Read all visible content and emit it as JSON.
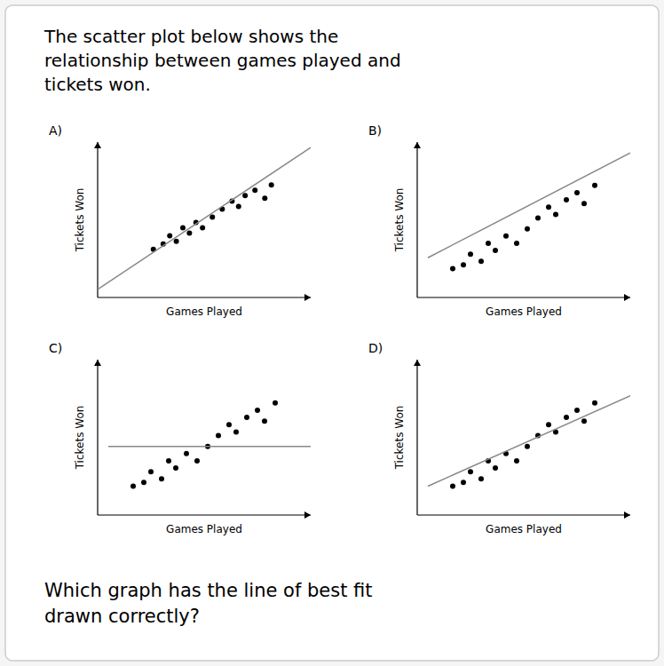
{
  "title": "The scatter plot below shows the\nrelationship between games played and\ntickets won.",
  "question": "Which graph has the line of best fit\ndrawn correctly?",
  "chart_data": [
    {
      "type": "scatter",
      "title": "A)",
      "x_label": "Games Played",
      "y_label": "Tickets Won",
      "xlim": [
        -0.5,
        6.0
      ],
      "ylim": [
        0.2,
        6.0
      ],
      "tick_labels": false,
      "series": [
        {
          "type": "scatter",
          "color": "#000000",
          "x": [
            1.2,
            1.5,
            1.7,
            1.9,
            2.1,
            2.3,
            2.5,
            2.7,
            3.0,
            3.3,
            3.6,
            3.8,
            4.0,
            4.3,
            4.6,
            4.8
          ],
          "values": [
            2.0,
            2.2,
            2.5,
            2.3,
            2.8,
            2.6,
            3.0,
            2.8,
            3.2,
            3.5,
            3.8,
            3.6,
            4.0,
            4.2,
            3.9,
            4.4
          ]
        },
        {
          "type": "line",
          "color": "#888888",
          "x": [
            -0.5,
            6.0
          ],
          "values": [
            0.5,
            5.8
          ]
        }
      ]
    },
    {
      "type": "scatter",
      "title": "B)",
      "x_label": "Games Played",
      "y_label": "Tickets Won",
      "xlim": [
        0,
        6.0
      ],
      "ylim": [
        1.2,
        5.5
      ],
      "tick_labels": false,
      "series": [
        {
          "type": "scatter",
          "color": "#000000",
          "x": [
            1.0,
            1.3,
            1.5,
            1.8,
            2.0,
            2.2,
            2.5,
            2.8,
            3.1,
            3.4,
            3.7,
            3.9,
            4.2,
            4.5,
            4.7,
            5.0
          ],
          "values": [
            2.0,
            2.1,
            2.4,
            2.2,
            2.7,
            2.5,
            2.9,
            2.7,
            3.1,
            3.4,
            3.7,
            3.5,
            3.9,
            4.1,
            3.8,
            4.3
          ]
        },
        {
          "type": "line",
          "color": "#888888",
          "x": [
            0.3,
            6.0
          ],
          "values": [
            2.3,
            5.2
          ]
        }
      ]
    },
    {
      "type": "scatter",
      "title": "C)",
      "x_label": "Games Played",
      "y_label": "Tickets Won",
      "xlim": [
        0,
        6.0
      ],
      "ylim": [
        1.2,
        5.5
      ],
      "tick_labels": false,
      "series": [
        {
          "type": "scatter",
          "color": "#000000",
          "x": [
            1.0,
            1.3,
            1.5,
            1.8,
            2.0,
            2.2,
            2.5,
            2.8,
            3.1,
            3.4,
            3.7,
            3.9,
            4.2,
            4.5,
            4.7,
            5.0
          ],
          "values": [
            2.0,
            2.1,
            2.4,
            2.2,
            2.7,
            2.5,
            2.9,
            2.7,
            3.1,
            3.4,
            3.7,
            3.5,
            3.9,
            4.1,
            3.8,
            4.3
          ]
        },
        {
          "type": "line",
          "color": "#888888",
          "x": [
            0.3,
            6.0
          ],
          "values": [
            3.1,
            3.1
          ]
        }
      ]
    },
    {
      "type": "scatter",
      "title": "D)",
      "x_label": "Games Played",
      "y_label": "Tickets Won",
      "xlim": [
        0,
        6.0
      ],
      "ylim": [
        1.2,
        5.5
      ],
      "tick_labels": false,
      "series": [
        {
          "type": "scatter",
          "color": "#000000",
          "x": [
            1.0,
            1.3,
            1.5,
            1.8,
            2.0,
            2.2,
            2.5,
            2.8,
            3.1,
            3.4,
            3.7,
            3.9,
            4.2,
            4.5,
            4.7,
            5.0
          ],
          "values": [
            2.0,
            2.1,
            2.4,
            2.2,
            2.7,
            2.5,
            2.9,
            2.7,
            3.1,
            3.4,
            3.7,
            3.5,
            3.9,
            4.1,
            3.8,
            4.3
          ]
        },
        {
          "type": "line",
          "color": "#888888",
          "x": [
            0.3,
            6.0
          ],
          "values": [
            2.0,
            4.5
          ]
        }
      ]
    }
  ]
}
